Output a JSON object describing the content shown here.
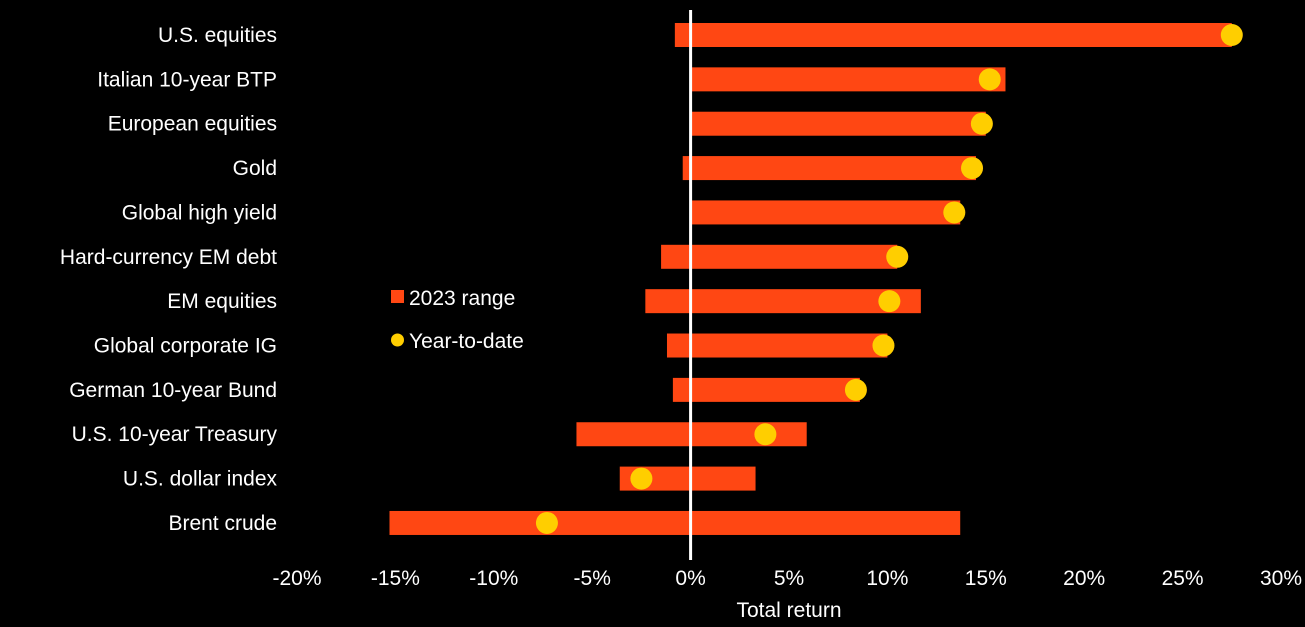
{
  "chart_data": {
    "type": "bar",
    "subtype": "range-bar-with-dots",
    "orientation": "horizontal",
    "categories": [
      "U.S. equities",
      "Italian 10-year BTP",
      "European equities",
      "Gold",
      "Global high yield",
      "Hard-currency EM debt",
      "EM equities",
      "Global corporate IG",
      "German 10-year Bund",
      "U.S. 10-year Treasury",
      "U.S. dollar index",
      "Brent crude"
    ],
    "series": [
      {
        "name": "2023 range",
        "kind": "range",
        "color": "#ff4713",
        "low": [
          -0.8,
          0.0,
          0.0,
          -0.4,
          0.0,
          -1.5,
          -2.3,
          -1.2,
          -0.9,
          -5.8,
          -3.6,
          -15.3
        ],
        "high": [
          27.5,
          16.0,
          15.0,
          14.5,
          13.7,
          10.5,
          11.7,
          10.0,
          8.6,
          5.9,
          3.3,
          13.7
        ]
      },
      {
        "name": "Year-to-date",
        "kind": "point",
        "color": "#ffce00",
        "values": [
          27.5,
          15.2,
          14.8,
          14.3,
          13.4,
          10.5,
          10.1,
          9.8,
          8.4,
          3.8,
          -2.5,
          -7.3
        ]
      }
    ],
    "xlabel": "Total return",
    "ylabel": "",
    "xlim": [
      -20,
      30
    ],
    "xticks": [
      -20,
      -15,
      -10,
      -5,
      0,
      5,
      10,
      15,
      20,
      25,
      30
    ],
    "xtick_labels": [
      "-20%",
      "-15%",
      "-10%",
      "-5%",
      "0%",
      "5%",
      "10%",
      "15%",
      "20%",
      "25%",
      "30%"
    ],
    "zero_line": true,
    "zero_line_color": "#ffffff",
    "grid": false,
    "legend_position": "center-left",
    "background": "#000000"
  }
}
